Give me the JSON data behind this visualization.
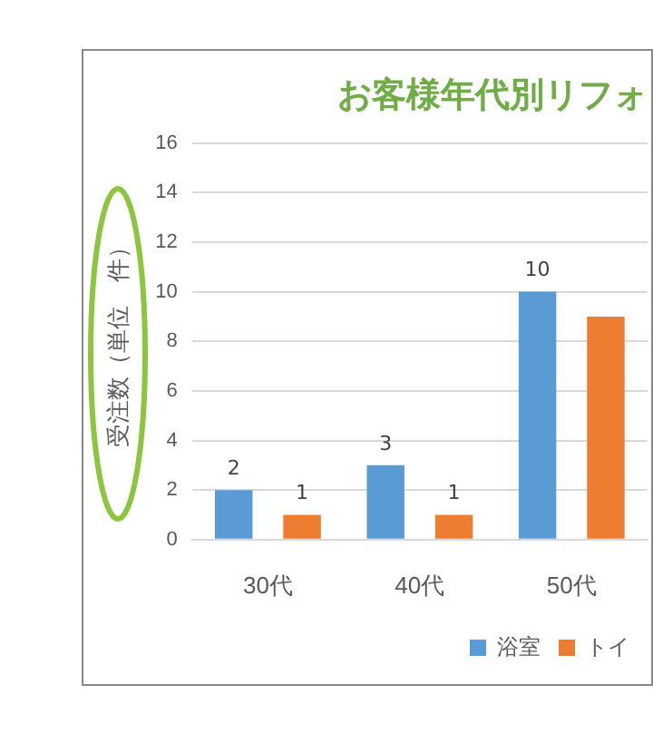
{
  "chart_data": {
    "type": "bar",
    "title": "お客様年代別リフォ",
    "ylabel": "受注数（単位　件）",
    "categories": [
      "30代",
      "40代",
      "50代"
    ],
    "series": [
      {
        "name": "浴室",
        "color": "#5b9bd5",
        "values": [
          2,
          3,
          10
        ],
        "value_labels": [
          "2",
          "3",
          "10"
        ]
      },
      {
        "name": "トイ",
        "color": "#ed7d31",
        "values": [
          1,
          1,
          9
        ],
        "value_labels": [
          "1",
          "1",
          null
        ]
      }
    ],
    "ylim": [
      0,
      16
    ],
    "yticks": [
      0,
      2,
      4,
      6,
      8,
      10,
      12,
      14,
      16
    ],
    "grid": "y",
    "legend": "bottom right"
  }
}
